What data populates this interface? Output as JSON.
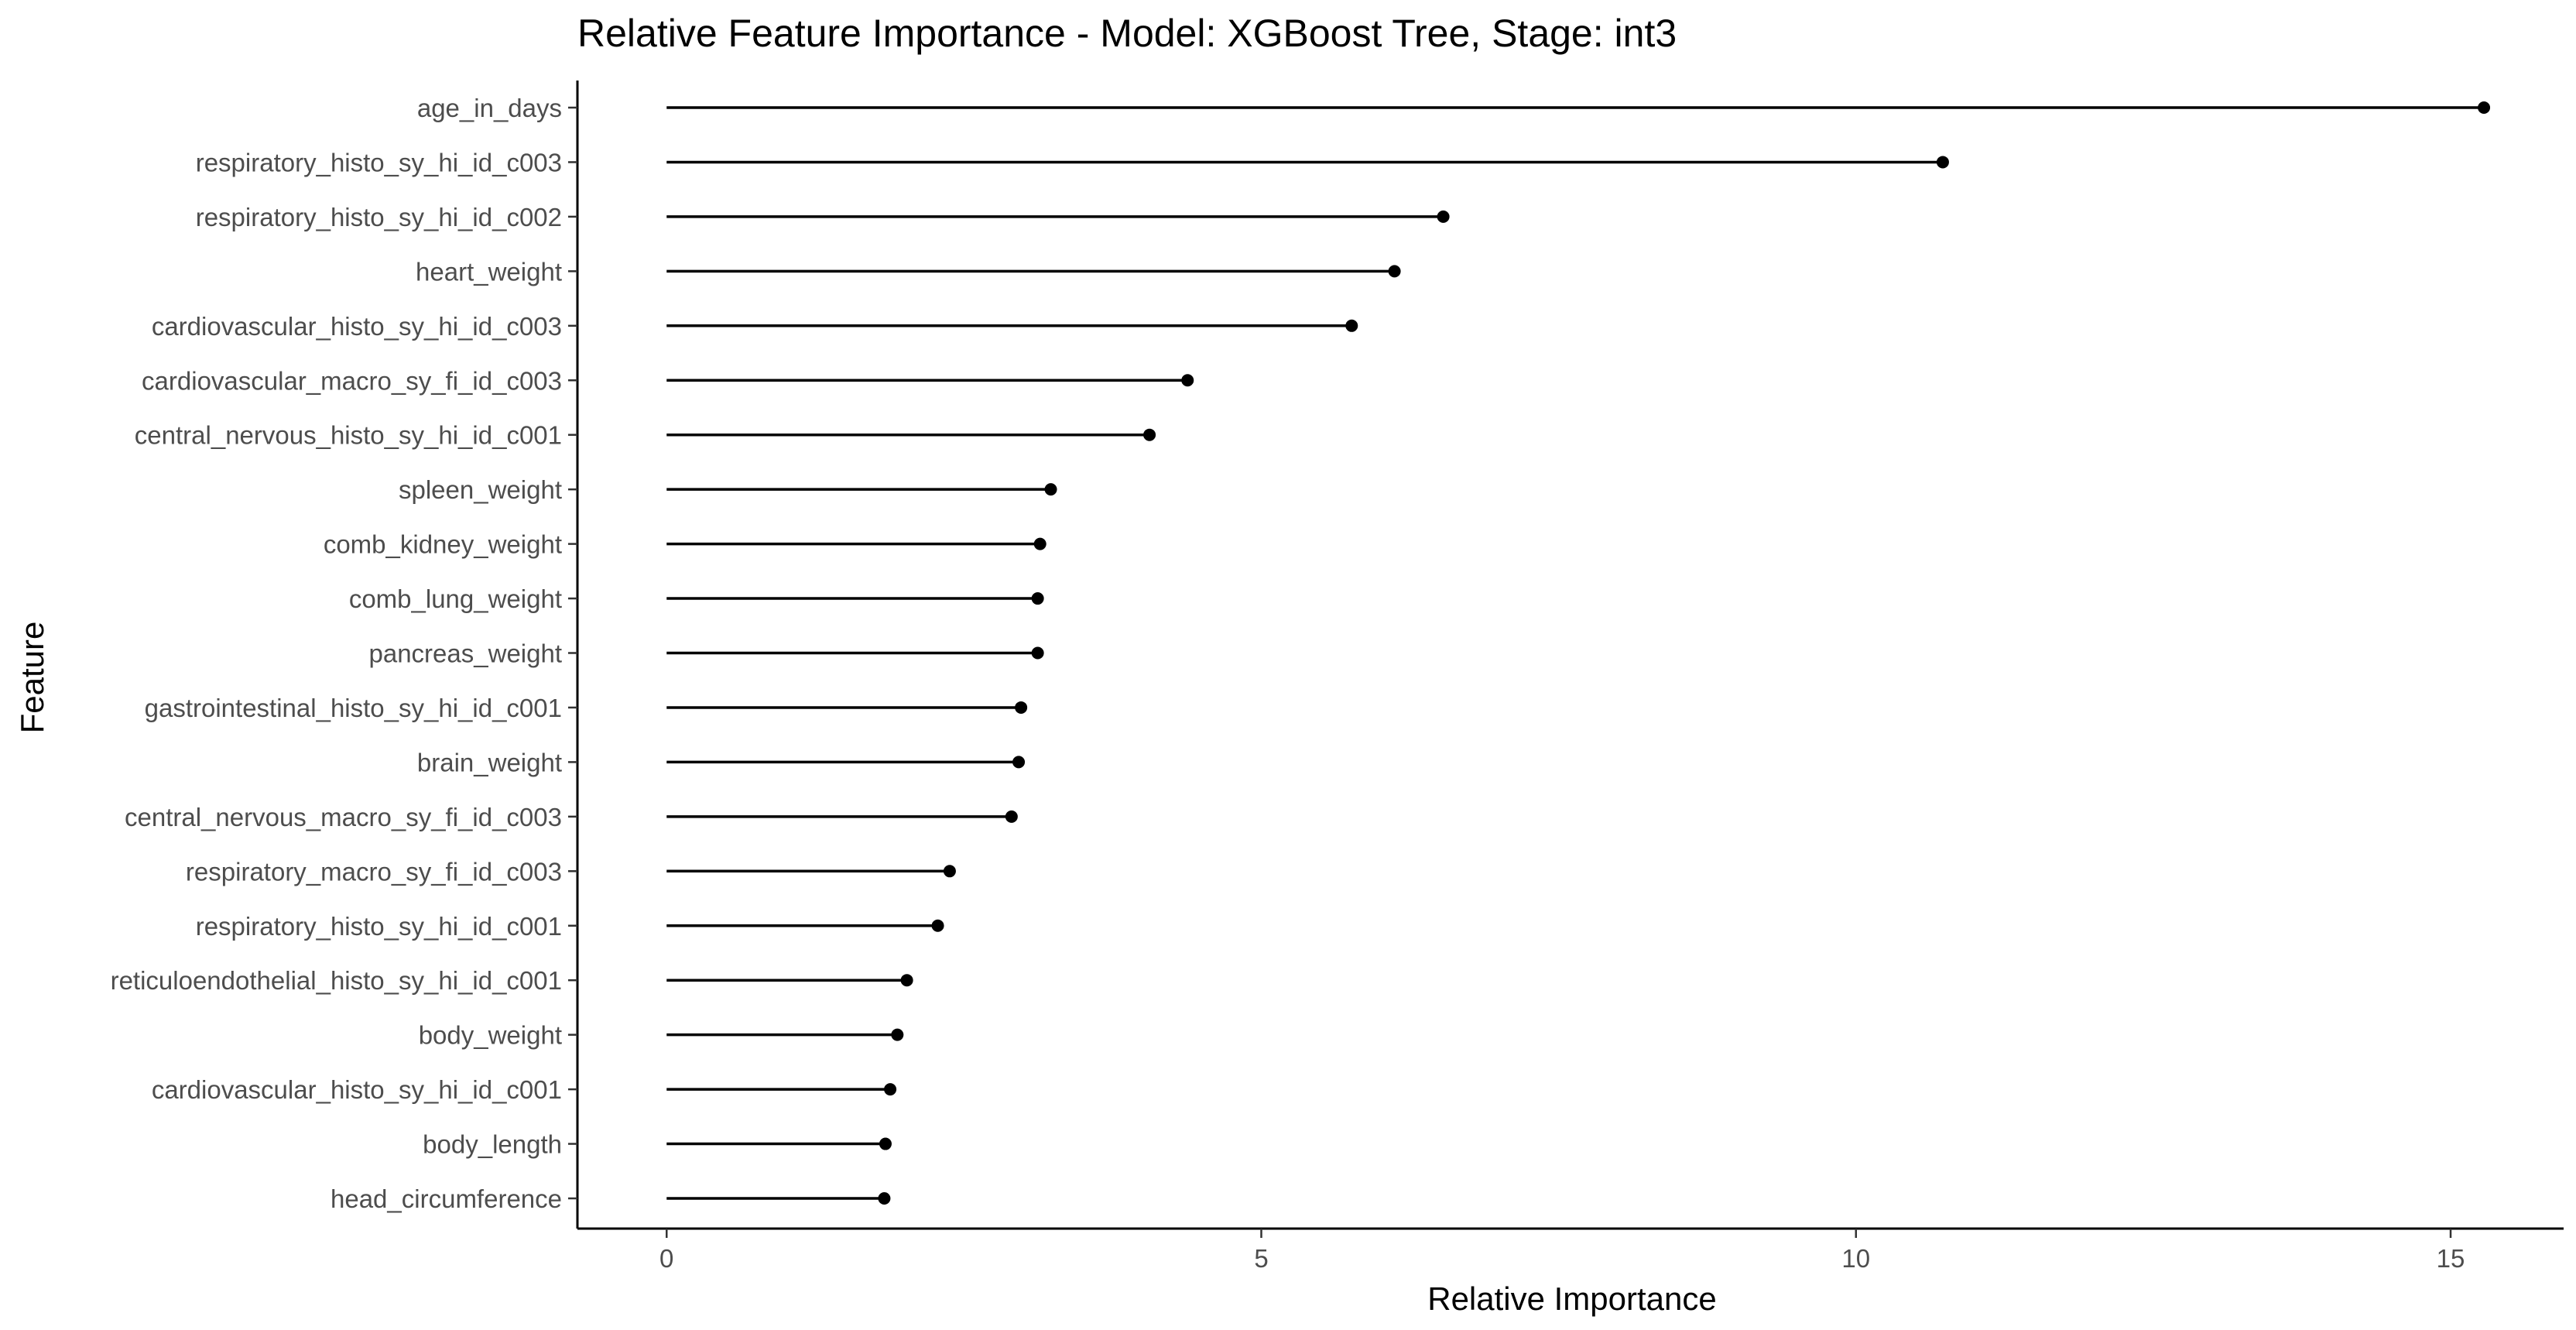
{
  "chart_data": {
    "type": "lollipop",
    "title": "Relative Feature Importance - Model: XGBoost Tree, Stage: int3",
    "xlabel": "Relative Importance",
    "ylabel": "Feature",
    "xlim": [
      -0.75,
      15.95
    ],
    "xticks": [
      0,
      5,
      10,
      15
    ],
    "grid": false,
    "legend": "none",
    "colors": {
      "mark": "#000000",
      "tick_label": "#4d4d4d",
      "background": "#ffffff"
    },
    "categories": [
      "age_in_days",
      "respiratory_histo_sy_hi_id_c003",
      "respiratory_histo_sy_hi_id_c002",
      "heart_weight",
      "cardiovascular_histo_sy_hi_id_c003",
      "cardiovascular_macro_sy_fi_id_c003",
      "central_nervous_histo_sy_hi_id_c001",
      "spleen_weight",
      "comb_kidney_weight",
      "comb_lung_weight",
      "pancreas_weight",
      "gastrointestinal_histo_sy_hi_id_c001",
      "brain_weight",
      "central_nervous_macro_sy_fi_id_c003",
      "respiratory_macro_sy_fi_id_c003",
      "respiratory_histo_sy_hi_id_c001",
      "reticuloendothelial_histo_sy_hi_id_c001",
      "body_weight",
      "cardiovascular_histo_sy_hi_id_c001",
      "body_length",
      "head_circumference"
    ],
    "values": [
      15.28,
      10.73,
      6.53,
      6.12,
      5.76,
      4.38,
      4.06,
      3.23,
      3.14,
      3.12,
      3.12,
      2.98,
      2.96,
      2.9,
      2.38,
      2.28,
      2.02,
      1.94,
      1.88,
      1.84,
      1.83
    ]
  }
}
